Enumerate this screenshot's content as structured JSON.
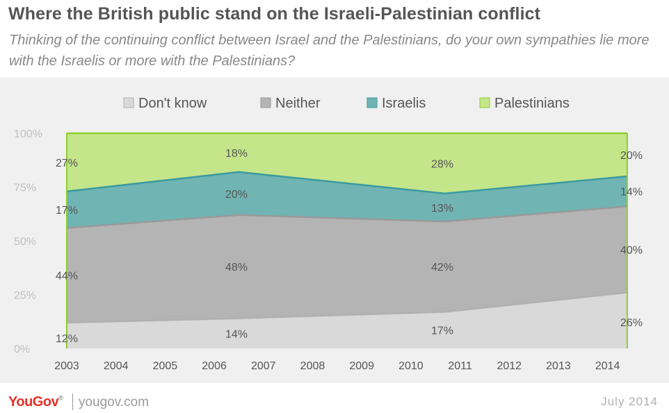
{
  "header": {
    "title": "Where the British public stand on the Israeli-Palestinian conflict",
    "subtitle": "Thinking of the continuing conflict between Israel and the Palestinians, do your own sympathies lie more with the Israelis or more with the Palestinians?"
  },
  "footer": {
    "logo": "YouGov",
    "site": "yougov.com",
    "date": "July  2014"
  },
  "colors": {
    "dont_know": "#d9d9d9",
    "neither": "#b4b4b4",
    "israelis": "#70b4b3",
    "palestinians": "#c5e58a",
    "chart_background": "#f0f0f0",
    "axis_text": "#c0c0c0"
  },
  "chart_data": {
    "type": "area",
    "stacked": true,
    "x": [
      2003,
      2006.5,
      2010.7,
      2014.4
    ],
    "xticks": [
      2003,
      2004,
      2005,
      2006,
      2007,
      2008,
      2009,
      2010,
      2011,
      2012,
      2013,
      2014
    ],
    "xlim": [
      2003,
      2014.5
    ],
    "ylim": [
      0,
      100
    ],
    "yticks": [
      0,
      25,
      50,
      75,
      100
    ],
    "ytick_labels": [
      "0%",
      "25%",
      "50%",
      "75%",
      "100%"
    ],
    "legend_position": "top",
    "grid": false,
    "series": [
      {
        "name": "Don't know",
        "key": "dont_know",
        "values": [
          12,
          14,
          17,
          26
        ],
        "labels": [
          "12%",
          "14%",
          "17%",
          "26%"
        ]
      },
      {
        "name": "Neither",
        "key": "neither",
        "values": [
          44,
          48,
          42,
          40
        ],
        "labels": [
          "44%",
          "48%",
          "42%",
          "40%"
        ]
      },
      {
        "name": "Israelis",
        "key": "israelis",
        "values": [
          17,
          20,
          13,
          14
        ],
        "labels": [
          "17%",
          "20%",
          "13%",
          "14%"
        ]
      },
      {
        "name": "Palestinians",
        "key": "palestinians",
        "values": [
          27,
          18,
          28,
          20
        ],
        "labels": [
          "27%",
          "18%",
          "28%",
          "20%"
        ]
      }
    ]
  }
}
